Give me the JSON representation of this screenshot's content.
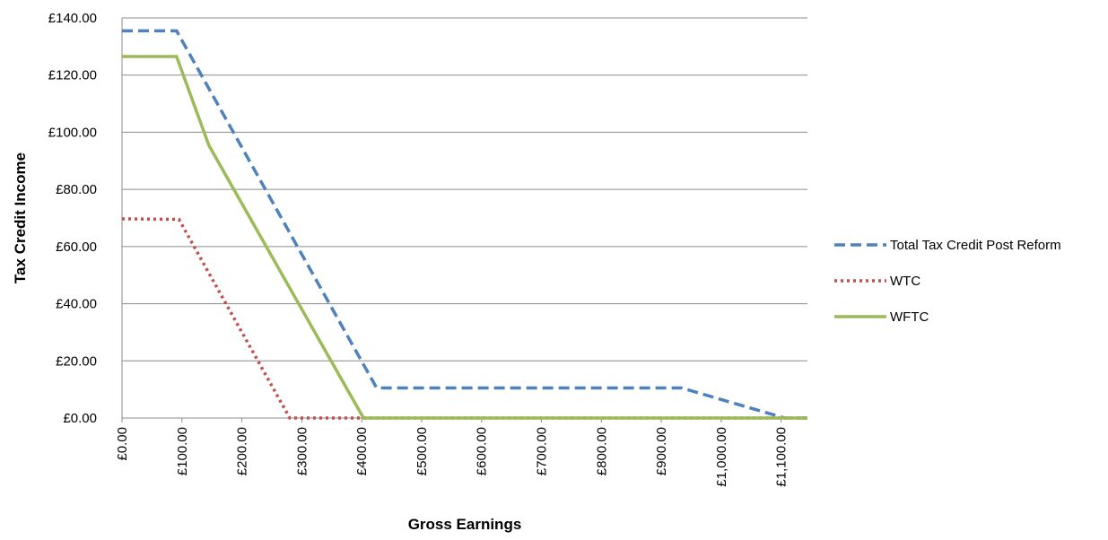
{
  "chart_data": {
    "type": "line",
    "x_label": "Gross Earnings",
    "y_label": "Tax Credit Income",
    "xlim": [
      0,
      1144
    ],
    "ylim": [
      0,
      140
    ],
    "xticks": [
      {
        "value": 0,
        "label": "£0.00"
      },
      {
        "value": 100,
        "label": "£100.00"
      },
      {
        "value": 200,
        "label": "£200.00"
      },
      {
        "value": 300,
        "label": "£300.00"
      },
      {
        "value": 400,
        "label": "£400.00"
      },
      {
        "value": 500,
        "label": "£500.00"
      },
      {
        "value": 600,
        "label": "£600.00"
      },
      {
        "value": 700,
        "label": "£700.00"
      },
      {
        "value": 800,
        "label": "£800.00"
      },
      {
        "value": 900,
        "label": "£900.00"
      },
      {
        "value": 1000,
        "label": "£1,000.00"
      },
      {
        "value": 1100,
        "label": "£1,100.00"
      }
    ],
    "yticks": [
      {
        "value": 0,
        "label": "£0.00"
      },
      {
        "value": 20,
        "label": "£20.00"
      },
      {
        "value": 40,
        "label": "£40.00"
      },
      {
        "value": 60,
        "label": "£60.00"
      },
      {
        "value": 80,
        "label": "£80.00"
      },
      {
        "value": 100,
        "label": "£100.00"
      },
      {
        "value": 120,
        "label": "£120.00"
      },
      {
        "value": 140,
        "label": "£140.00"
      }
    ],
    "grid": true,
    "legend": "right",
    "series": [
      {
        "name": "Total Tax Credit Post Reform",
        "color": "#4f81bd",
        "dash": "dashed",
        "x": [
          0,
          91,
          425,
          934,
          1106,
          1144
        ],
        "values": [
          135.5,
          135.5,
          10.5,
          10.5,
          0,
          0
        ]
      },
      {
        "name": "WTC",
        "color": "#c0504d",
        "dash": "dotted",
        "x": [
          0,
          95,
          280,
          1144
        ],
        "values": [
          69.7,
          69.5,
          0,
          0
        ]
      },
      {
        "name": "WFTC",
        "color": "#9bbb59",
        "dash": "solid",
        "x": [
          0,
          91,
          145,
          403,
          1144
        ],
        "values": [
          126.5,
          126.5,
          95.4,
          0,
          0
        ]
      }
    ]
  }
}
